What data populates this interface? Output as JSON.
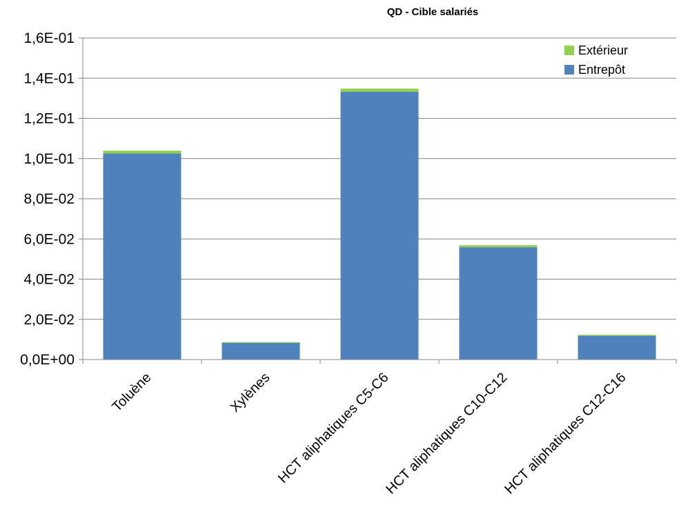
{
  "chart_data": {
    "type": "bar",
    "stacked": true,
    "title": "QD  - Cible salariés",
    "xlabel": "",
    "ylabel": "",
    "ylim": [
      0,
      0.16
    ],
    "ytick_values": [
      0,
      0.02,
      0.04,
      0.06,
      0.08,
      0.1,
      0.12,
      0.14,
      0.16
    ],
    "ytick_labels": [
      "0,0E+00",
      "2,0E-02",
      "4,0E-02",
      "6,0E-02",
      "8,0E-02",
      "1,0E-01",
      "1,2E-01",
      "1,4E-01",
      "1,6E-01"
    ],
    "categories": [
      "Toluène",
      "Xylènes",
      "HCT aliphatiques  C5-C6",
      "HCT aliphatiques  C10-C12",
      "HCT aliphatiques  C12-C16"
    ],
    "grid": true,
    "legend_position": "top-right",
    "series": [
      {
        "name": "Entrepôt",
        "color": "#4F81BD",
        "values": [
          0.1025,
          0.0083,
          0.1332,
          0.0559,
          0.0118
        ]
      },
      {
        "name": "Extérieur",
        "color": "#92D050",
        "values": [
          0.0014,
          0.0004,
          0.0016,
          0.001,
          0.0005
        ]
      }
    ],
    "legend_order": [
      "Extérieur",
      "Entrepôt"
    ]
  }
}
